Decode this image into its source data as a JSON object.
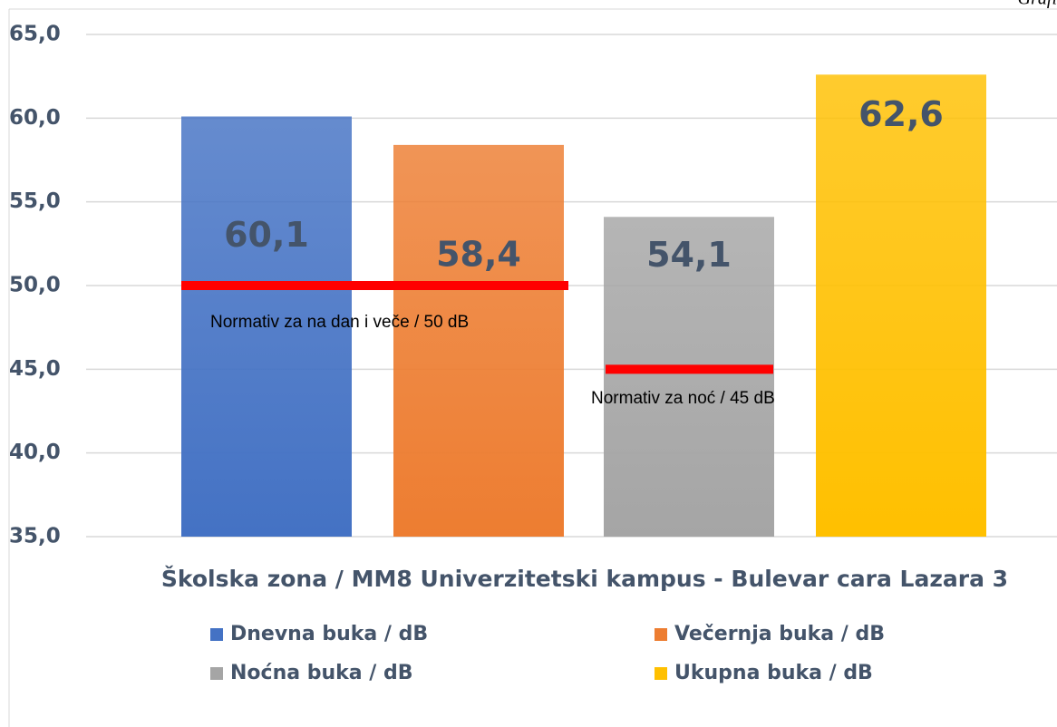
{
  "chart_data": {
    "type": "bar",
    "caption": "Grafi",
    "categories": [
      "Školska zona / MM8 Univerzitetski kampus - Bulevar cara Lazara 3"
    ],
    "series": [
      {
        "name": "Dnevna buka / dB",
        "color": "#4472c4",
        "values": [
          60.1
        ],
        "value_labels": [
          "60,1"
        ]
      },
      {
        "name": "Večernja buka / dB",
        "color": "#ed7d31",
        "values": [
          58.4
        ],
        "value_labels": [
          "58,4"
        ]
      },
      {
        "name": "Noćna buka / dB",
        "color": "#a5a5a5",
        "values": [
          54.1
        ],
        "value_labels": [
          "54,1"
        ]
      },
      {
        "name": "Ukupna buka / dB",
        "color": "#ffc000",
        "values": [
          62.6
        ],
        "value_labels": [
          "62,6"
        ]
      }
    ],
    "ylim": [
      35,
      65
    ],
    "yticks": [
      {
        "value": 35,
        "label": "35,0"
      },
      {
        "value": 40,
        "label": "40,0"
      },
      {
        "value": 45,
        "label": "45,0"
      },
      {
        "value": 50,
        "label": "50,0"
      },
      {
        "value": 55,
        "label": "55,0"
      },
      {
        "value": 60,
        "label": "60,0"
      },
      {
        "value": 65,
        "label": "65,0"
      }
    ],
    "grid": true,
    "reference_lines": [
      {
        "value": 50,
        "label": "Normativ za na dan i veče / 50 dB",
        "color": "#ff0000"
      },
      {
        "value": 45,
        "label": "Normativ za noć / 45 dB",
        "color": "#ff0000"
      }
    ]
  }
}
